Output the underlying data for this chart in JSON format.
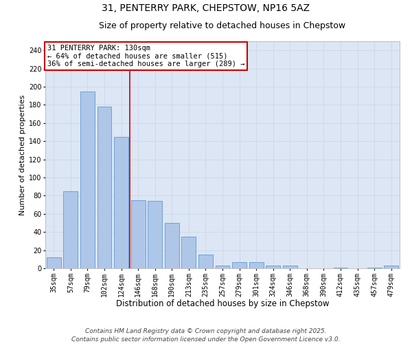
{
  "title1": "31, PENTERRY PARK, CHEPSTOW, NP16 5AZ",
  "title2": "Size of property relative to detached houses in Chepstow",
  "xlabel": "Distribution of detached houses by size in Chepstow",
  "ylabel": "Number of detached properties",
  "categories": [
    "35sqm",
    "57sqm",
    "79sqm",
    "102sqm",
    "124sqm",
    "146sqm",
    "168sqm",
    "190sqm",
    "213sqm",
    "235sqm",
    "257sqm",
    "279sqm",
    "301sqm",
    "324sqm",
    "346sqm",
    "368sqm",
    "390sqm",
    "412sqm",
    "435sqm",
    "457sqm",
    "479sqm"
  ],
  "values": [
    12,
    85,
    195,
    178,
    145,
    75,
    74,
    50,
    35,
    15,
    3,
    7,
    7,
    3,
    3,
    0,
    0,
    1,
    0,
    1,
    3
  ],
  "bar_color": "#aec6e8",
  "bar_edge_color": "#5b9bd5",
  "grid_color": "#d0d8e8",
  "background_color": "#dce6f5",
  "annotation_text": "31 PENTERRY PARK: 130sqm\n← 64% of detached houses are smaller (515)\n36% of semi-detached houses are larger (289) →",
  "annotation_box_color": "#ffffff",
  "annotation_box_edge": "#cc0000",
  "vline_x": 4.5,
  "vline_color": "#cc0000",
  "ylim": [
    0,
    250
  ],
  "yticks": [
    0,
    20,
    40,
    60,
    80,
    100,
    120,
    140,
    160,
    180,
    200,
    220,
    240
  ],
  "footer": "Contains HM Land Registry data © Crown copyright and database right 2025.\nContains public sector information licensed under the Open Government Licence v3.0.",
  "title1_fontsize": 10,
  "title2_fontsize": 9,
  "xlabel_fontsize": 8.5,
  "ylabel_fontsize": 8,
  "tick_fontsize": 7,
  "annotation_fontsize": 7.5,
  "footer_fontsize": 6.5
}
